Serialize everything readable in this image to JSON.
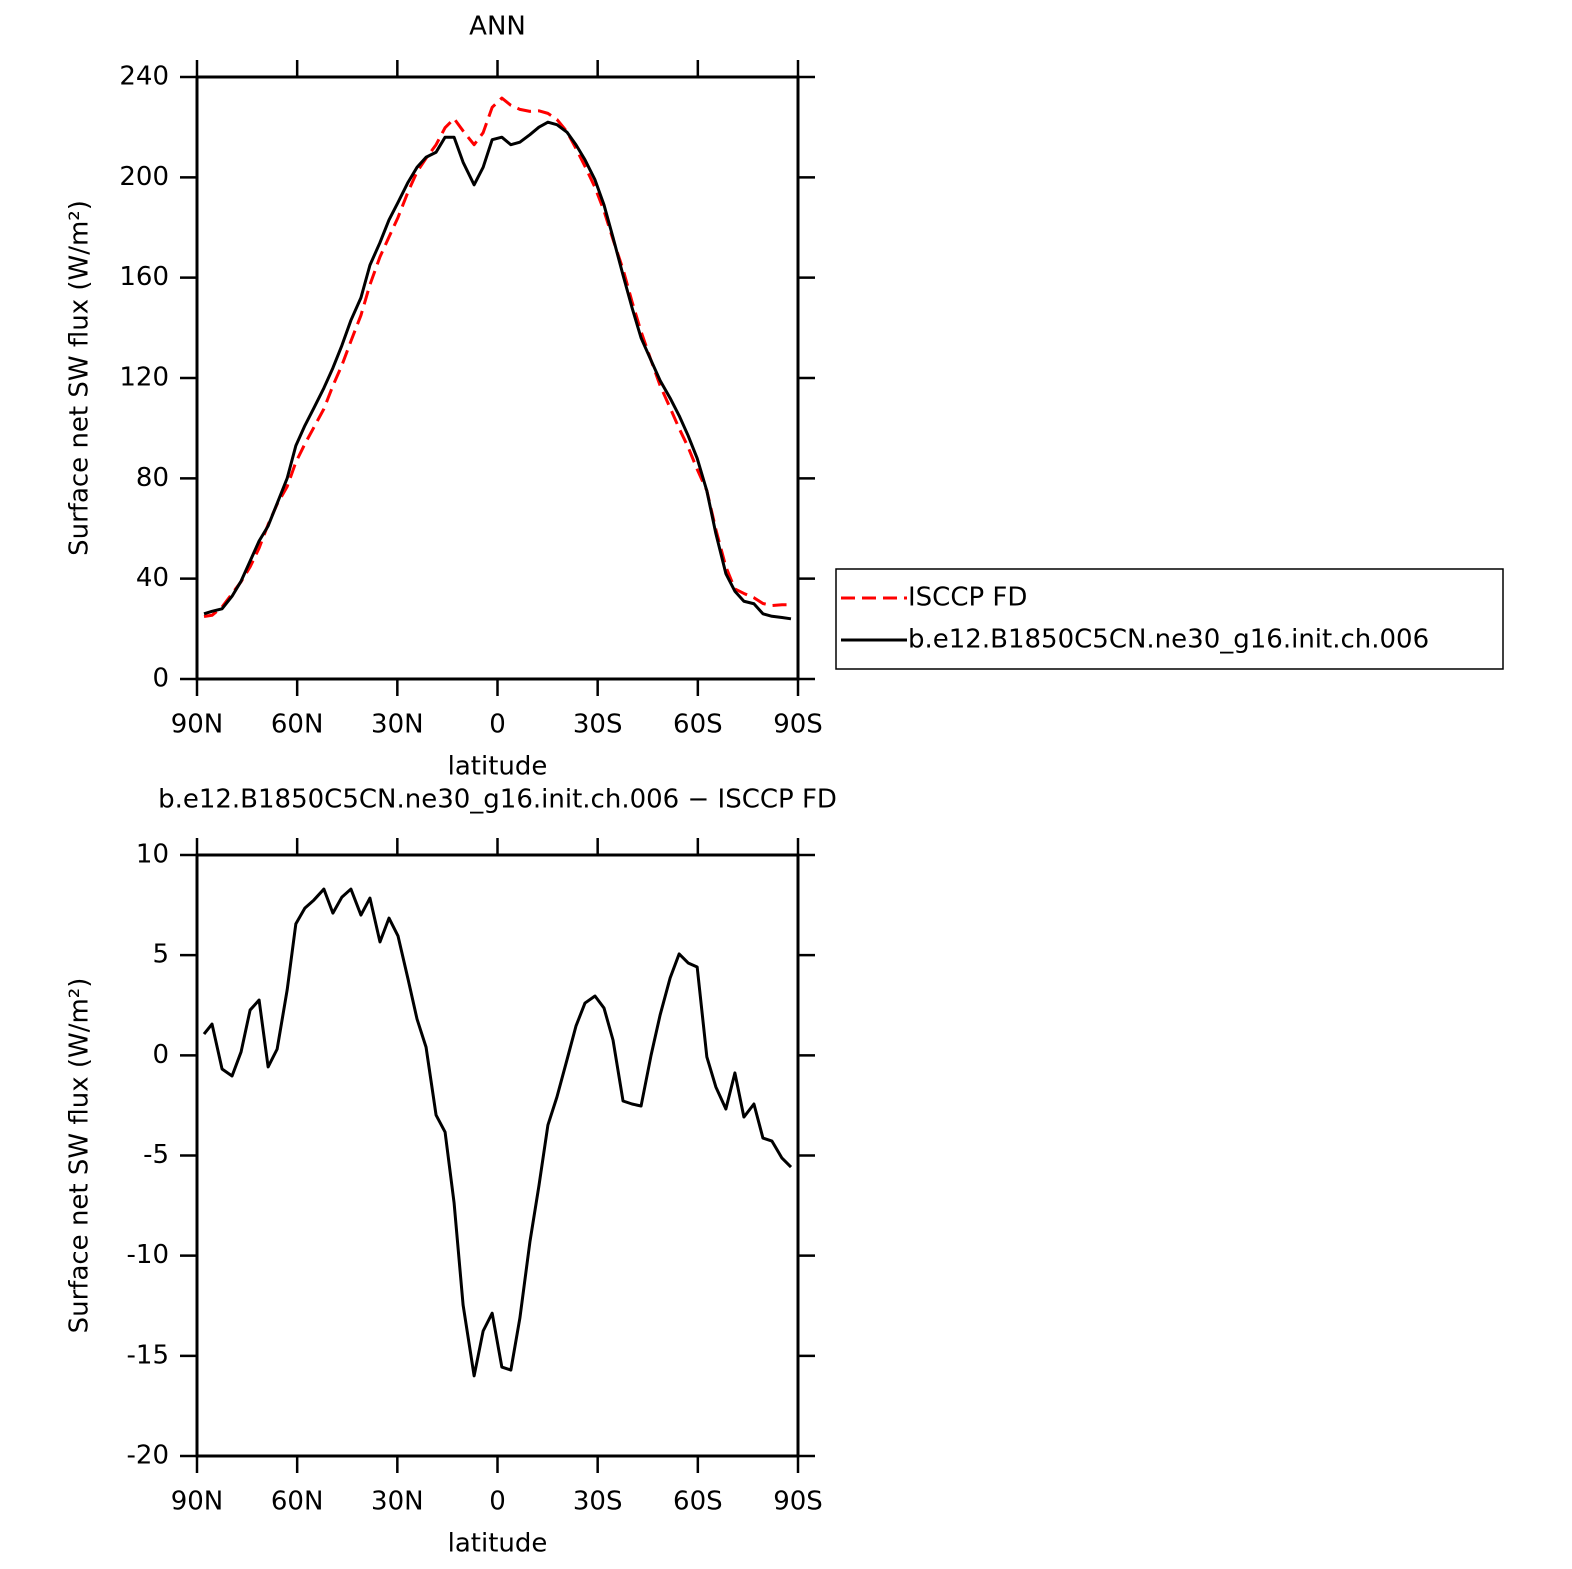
{
  "chart_data": [
    {
      "type": "line",
      "title": "ANN",
      "xlabel": "latitude",
      "ylabel": "Surface net SW flux (W/m²)",
      "x": [
        87.9,
        85.5,
        82.5,
        79.5,
        76.8,
        74.1,
        71.4,
        68.7,
        66.0,
        63.0,
        60.4,
        57.7,
        55.0,
        52.0,
        49.3,
        46.6,
        43.9,
        40.9,
        38.2,
        35.2,
        32.5,
        29.8,
        26.8,
        24.1,
        21.4,
        18.4,
        15.7,
        13.0,
        10.3,
        7.0,
        4.3,
        1.6,
        -1.3,
        -4.0,
        -6.7,
        -9.7,
        -12.4,
        -15.1,
        -17.8,
        -20.8,
        -23.5,
        -26.2,
        -29.2,
        -31.9,
        -34.6,
        -37.6,
        -40.3,
        -43.0,
        -46.0,
        -48.7,
        -51.7,
        -54.4,
        -57.1,
        -59.8,
        -62.7,
        -65.4,
        -68.4,
        -71.1,
        -73.8,
        -76.8,
        -79.5,
        -82.2,
        -85.2,
        -87.9
      ],
      "series": [
        {
          "name": "ISCCP FD",
          "color": "#ff0000",
          "dashed": true,
          "values": [
            24.9,
            25.4,
            28.7,
            34.0,
            38.8,
            44.7,
            52.2,
            61.6,
            69.7,
            76.7,
            86.4,
            93.7,
            100.3,
            107.7,
            116.9,
            125.1,
            134.7,
            145.0,
            157.2,
            168.3,
            176.2,
            184.0,
            194.2,
            202.2,
            207.6,
            213.0,
            219.8,
            223.4,
            218.5,
            213.0,
            217.8,
            227.9,
            231.6,
            228.7,
            227.1,
            226.3,
            226.5,
            225.5,
            223.1,
            218.2,
            211.5,
            204.4,
            196.0,
            186.6,
            175.2,
            163.3,
            150.4,
            138.5,
            127.0,
            117.0,
            108.1,
            99.9,
            92.4,
            83.6,
            75.1,
            59.6,
            44.7,
            35.9,
            34.1,
            32.4,
            30.1,
            29.3,
            29.6,
            29.6
          ]
        },
        {
          "name": "b.e12.B1850C5CN.ne30_g16.init.ch.006",
          "color": "#000000",
          "dashed": false,
          "values": [
            26,
            27,
            28,
            33,
            39,
            47,
            55,
            61,
            70,
            80,
            93,
            101,
            108,
            116,
            124,
            133,
            143,
            152,
            165,
            174,
            183,
            190,
            198,
            204,
            208,
            210,
            216,
            216,
            206,
            197,
            204,
            215,
            216,
            213,
            214,
            217,
            220,
            222,
            221,
            218,
            213,
            207,
            199,
            189,
            176,
            161,
            148,
            136,
            127,
            119,
            112,
            105,
            97,
            88,
            75,
            58,
            42,
            35,
            31,
            30,
            26,
            25,
            24.5,
            24
          ]
        }
      ],
      "xlim": [
        90,
        -90
      ],
      "xticks": [
        {
          "value": 90,
          "label": "90N"
        },
        {
          "value": 60,
          "label": "60N"
        },
        {
          "value": 30,
          "label": "30N"
        },
        0,
        {
          "value": -30,
          "label": "30S"
        },
        {
          "value": -60,
          "label": "60S"
        },
        {
          "value": -90,
          "label": "90S"
        }
      ],
      "ylim": [
        0,
        240
      ],
      "yticks": [
        0,
        40,
        80,
        120,
        160,
        200,
        240
      ],
      "legend": "right",
      "grid": false
    },
    {
      "type": "line",
      "title": "b.e12.B1850C5CN.ne30_g16.init.ch.006 − ISCCP FD",
      "xlabel": "latitude",
      "ylabel": "Surface net SW flux (W/m²)",
      "x": [
        87.9,
        85.5,
        82.5,
        79.5,
        76.8,
        74.1,
        71.4,
        68.7,
        66.0,
        63.0,
        60.4,
        57.7,
        55.0,
        52.0,
        49.3,
        46.6,
        43.9,
        40.9,
        38.2,
        35.2,
        32.5,
        29.8,
        26.8,
        24.1,
        21.4,
        18.4,
        15.7,
        13.0,
        10.3,
        7.0,
        4.3,
        1.6,
        -1.3,
        -4.0,
        -6.7,
        -9.7,
        -12.4,
        -15.1,
        -17.8,
        -20.8,
        -23.5,
        -26.2,
        -29.2,
        -31.9,
        -34.6,
        -37.6,
        -40.3,
        -43.0,
        -46.0,
        -48.7,
        -51.7,
        -54.4,
        -57.1,
        -59.8,
        -62.7,
        -65.4,
        -68.4,
        -71.1,
        -73.8,
        -76.8,
        -79.5,
        -82.2,
        -85.2,
        -87.9
      ],
      "series": [
        {
          "color": "#000000",
          "dashed": false,
          "values": [
            1.06,
            1.56,
            -0.68,
            -1.03,
            0.17,
            2.26,
            2.76,
            -0.58,
            0.31,
            3.26,
            6.56,
            7.35,
            7.75,
            8.3,
            7.1,
            7.9,
            8.3,
            7.0,
            7.85,
            5.66,
            6.85,
            5.96,
            3.81,
            1.81,
            0.41,
            -2.98,
            -3.83,
            -7.37,
            -12.47,
            -16.0,
            -13.76,
            -12.87,
            -15.56,
            -15.71,
            -13.12,
            -9.32,
            -6.52,
            -3.48,
            -2.08,
            -0.23,
            1.46,
            2.61,
            2.96,
            2.36,
            0.76,
            -2.28,
            -2.43,
            -2.53,
            0.01,
            2.01,
            3.86,
            5.06,
            4.61,
            4.41,
            -0.08,
            -1.58,
            -2.68,
            -0.88,
            -3.08,
            -2.43,
            -4.13,
            -4.28,
            -5.13,
            -5.58
          ]
        }
      ],
      "xlim": [
        90,
        -90
      ],
      "xticks": [
        {
          "value": 90,
          "label": "90N"
        },
        {
          "value": 60,
          "label": "60N"
        },
        {
          "value": 30,
          "label": "30N"
        },
        0,
        {
          "value": -30,
          "label": "30S"
        },
        {
          "value": -60,
          "label": "60S"
        },
        {
          "value": -90,
          "label": "90S"
        }
      ],
      "ylim": [
        -20,
        10
      ],
      "yticks": [
        -20,
        -15,
        -10,
        -5,
        0,
        5,
        10
      ],
      "grid": false
    }
  ]
}
